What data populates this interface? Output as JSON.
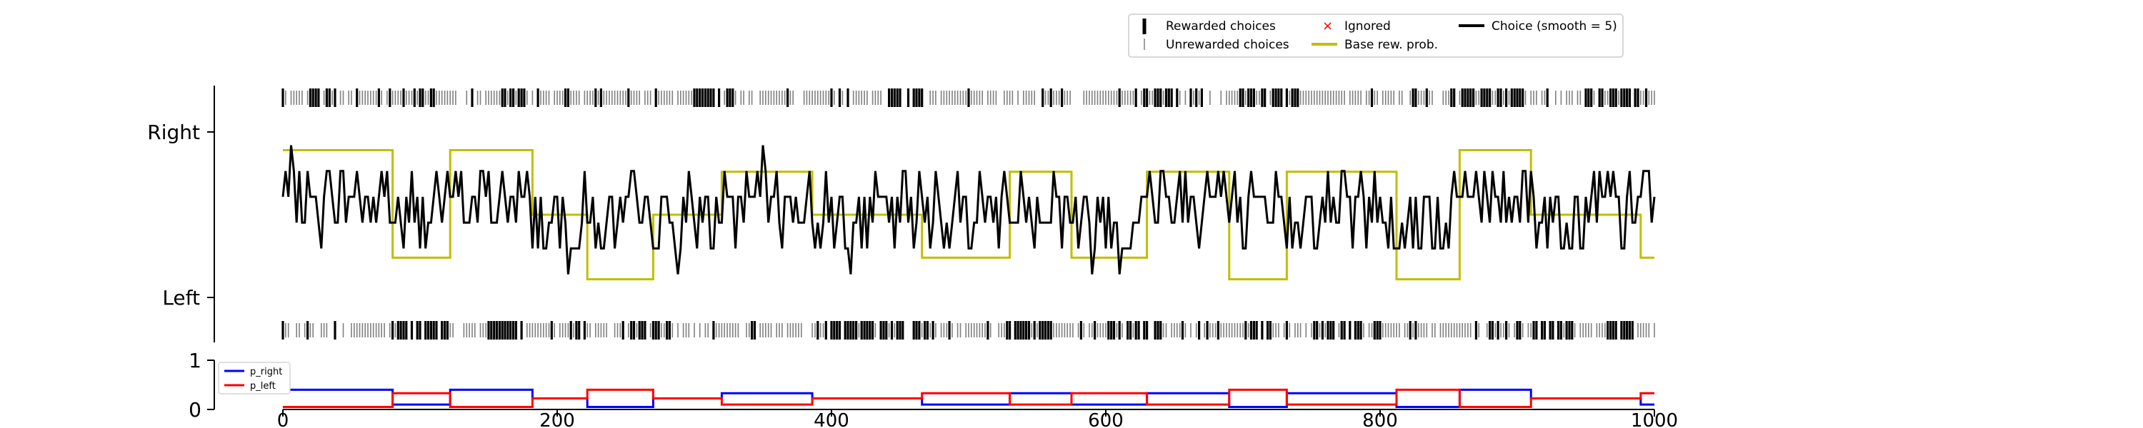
{
  "chart_data": [
    {
      "type": "line",
      "panel": "choices",
      "title": "",
      "xlabel": "",
      "ylabel": "",
      "xlim": [
        0,
        1000
      ],
      "y_ticks": [
        "Left",
        "Right"
      ],
      "legend": {
        "placement": "top-right",
        "entries": [
          {
            "label": "Rewarded choices",
            "marker": "thick-tick",
            "color": "#000000"
          },
          {
            "label": "Unrewarded choices",
            "marker": "thin-tick",
            "color": "#808080"
          },
          {
            "label": "Ignored",
            "marker": "x",
            "color": "#ff0000"
          },
          {
            "label": "Base rew. prob.",
            "marker": "line",
            "color": "#bfbf00"
          },
          {
            "label": "Choice (smooth = 5)",
            "marker": "line",
            "color": "#000000"
          }
        ]
      },
      "series": [
        {
          "name": "Base rew. prob.",
          "color": "#bfbf00",
          "segments": [
            {
              "x0": 0,
              "x1": 80,
              "y": 0.89
            },
            {
              "x0": 80,
              "x1": 122,
              "y": 0.24
            },
            {
              "x0": 122,
              "x1": 182,
              "y": 0.89
            },
            {
              "x0": 182,
              "x1": 222,
              "y": 0.5
            },
            {
              "x0": 222,
              "x1": 270,
              "y": 0.11
            },
            {
              "x0": 270,
              "x1": 320,
              "y": 0.5
            },
            {
              "x0": 320,
              "x1": 386,
              "y": 0.76
            },
            {
              "x0": 386,
              "x1": 466,
              "y": 0.5
            },
            {
              "x0": 466,
              "x1": 530,
              "y": 0.24
            },
            {
              "x0": 530,
              "x1": 575,
              "y": 0.76
            },
            {
              "x0": 575,
              "x1": 630,
              "y": 0.24
            },
            {
              "x0": 630,
              "x1": 690,
              "y": 0.76
            },
            {
              "x0": 690,
              "x1": 732,
              "y": 0.11
            },
            {
              "x0": 732,
              "x1": 812,
              "y": 0.76
            },
            {
              "x0": 812,
              "x1": 858,
              "y": 0.11
            },
            {
              "x0": 858,
              "x1": 910,
              "y": 0.89
            },
            {
              "x0": 910,
              "x1": 990,
              "y": 0.5
            },
            {
              "x0": 990,
              "x1": 1000,
              "y": 0.24
            }
          ]
        },
        {
          "name": "Choice (smooth = 5)",
          "color": "#000000",
          "blocks": [
            {
              "x0": 0,
              "x1": 80,
              "mean": 0.58
            },
            {
              "x0": 80,
              "x1": 122,
              "mean": 0.45
            },
            {
              "x0": 122,
              "x1": 182,
              "mean": 0.56
            },
            {
              "x0": 182,
              "x1": 222,
              "mean": 0.42
            },
            {
              "x0": 222,
              "x1": 270,
              "mean": 0.38
            },
            {
              "x0": 270,
              "x1": 320,
              "mean": 0.42
            },
            {
              "x0": 320,
              "x1": 386,
              "mean": 0.55
            },
            {
              "x0": 386,
              "x1": 466,
              "mean": 0.45
            },
            {
              "x0": 466,
              "x1": 530,
              "mean": 0.5
            },
            {
              "x0": 530,
              "x1": 575,
              "mean": 0.55
            },
            {
              "x0": 575,
              "x1": 630,
              "mean": 0.42
            },
            {
              "x0": 630,
              "x1": 690,
              "mean": 0.6
            },
            {
              "x0": 690,
              "x1": 732,
              "mean": 0.42
            },
            {
              "x0": 732,
              "x1": 812,
              "mean": 0.5
            },
            {
              "x0": 812,
              "x1": 858,
              "mean": 0.4
            },
            {
              "x0": 858,
              "x1": 910,
              "mean": 0.6
            },
            {
              "x0": 910,
              "x1": 990,
              "mean": 0.5
            },
            {
              "x0": 990,
              "x1": 1000,
              "mean": 0.62
            }
          ],
          "n_trials": 1000,
          "range": [
            0,
            1
          ]
        }
      ],
      "rewarded_fraction": 0.45,
      "rewarded_clusters_right": [
        [
          20,
          40
        ],
        [
          95,
          110
        ],
        [
          160,
          185
        ],
        [
          300,
          330
        ],
        [
          440,
          470
        ],
        [
          620,
          660
        ],
        [
          700,
          740
        ],
        [
          850,
          905
        ],
        [
          950,
          990
        ]
      ],
      "rewarded_clusters_left": [
        [
          80,
          120
        ],
        [
          150,
          175
        ],
        [
          245,
          290
        ],
        [
          395,
          475
        ],
        [
          525,
          560
        ],
        [
          600,
          640
        ],
        [
          700,
          720
        ],
        [
          750,
          800
        ],
        [
          880,
          940
        ],
        [
          965,
          985
        ]
      ]
    },
    {
      "type": "line",
      "panel": "probabilities",
      "title": "",
      "xlabel": "",
      "ylabel": "",
      "xlim": [
        0,
        1000
      ],
      "ylim": [
        0,
        1
      ],
      "x_ticks": [
        "0",
        "200",
        "400",
        "600",
        "800",
        "1000"
      ],
      "y_ticks": [
        "0",
        "1"
      ],
      "legend": {
        "placement": "top-left"
      },
      "series": [
        {
          "name": "p_right",
          "color": "#0000ff",
          "segments": [
            {
              "x0": 0,
              "x1": 80,
              "y": 0.4
            },
            {
              "x0": 80,
              "x1": 122,
              "y": 0.1
            },
            {
              "x0": 122,
              "x1": 182,
              "y": 0.4
            },
            {
              "x0": 182,
              "x1": 222,
              "y": 0.225
            },
            {
              "x0": 222,
              "x1": 270,
              "y": 0.05
            },
            {
              "x0": 270,
              "x1": 320,
              "y": 0.225
            },
            {
              "x0": 320,
              "x1": 386,
              "y": 0.33
            },
            {
              "x0": 386,
              "x1": 466,
              "y": 0.225
            },
            {
              "x0": 466,
              "x1": 530,
              "y": 0.1
            },
            {
              "x0": 530,
              "x1": 575,
              "y": 0.33
            },
            {
              "x0": 575,
              "x1": 630,
              "y": 0.1
            },
            {
              "x0": 630,
              "x1": 690,
              "y": 0.33
            },
            {
              "x0": 690,
              "x1": 732,
              "y": 0.05
            },
            {
              "x0": 732,
              "x1": 812,
              "y": 0.33
            },
            {
              "x0": 812,
              "x1": 858,
              "y": 0.05
            },
            {
              "x0": 858,
              "x1": 910,
              "y": 0.4
            },
            {
              "x0": 910,
              "x1": 990,
              "y": 0.225
            },
            {
              "x0": 990,
              "x1": 1000,
              "y": 0.1
            }
          ]
        },
        {
          "name": "p_left",
          "color": "#ff0000",
          "segments": [
            {
              "x0": 0,
              "x1": 80,
              "y": 0.05
            },
            {
              "x0": 80,
              "x1": 122,
              "y": 0.33
            },
            {
              "x0": 122,
              "x1": 182,
              "y": 0.05
            },
            {
              "x0": 182,
              "x1": 222,
              "y": 0.225
            },
            {
              "x0": 222,
              "x1": 270,
              "y": 0.4
            },
            {
              "x0": 270,
              "x1": 320,
              "y": 0.225
            },
            {
              "x0": 320,
              "x1": 386,
              "y": 0.1
            },
            {
              "x0": 386,
              "x1": 466,
              "y": 0.225
            },
            {
              "x0": 466,
              "x1": 530,
              "y": 0.33
            },
            {
              "x0": 530,
              "x1": 575,
              "y": 0.1
            },
            {
              "x0": 575,
              "x1": 630,
              "y": 0.33
            },
            {
              "x0": 630,
              "x1": 690,
              "y": 0.1
            },
            {
              "x0": 690,
              "x1": 732,
              "y": 0.4
            },
            {
              "x0": 732,
              "x1": 812,
              "y": 0.1
            },
            {
              "x0": 812,
              "x1": 858,
              "y": 0.4
            },
            {
              "x0": 858,
              "x1": 910,
              "y": 0.05
            },
            {
              "x0": 910,
              "x1": 990,
              "y": 0.225
            },
            {
              "x0": 990,
              "x1": 1000,
              "y": 0.33
            }
          ]
        }
      ]
    }
  ]
}
